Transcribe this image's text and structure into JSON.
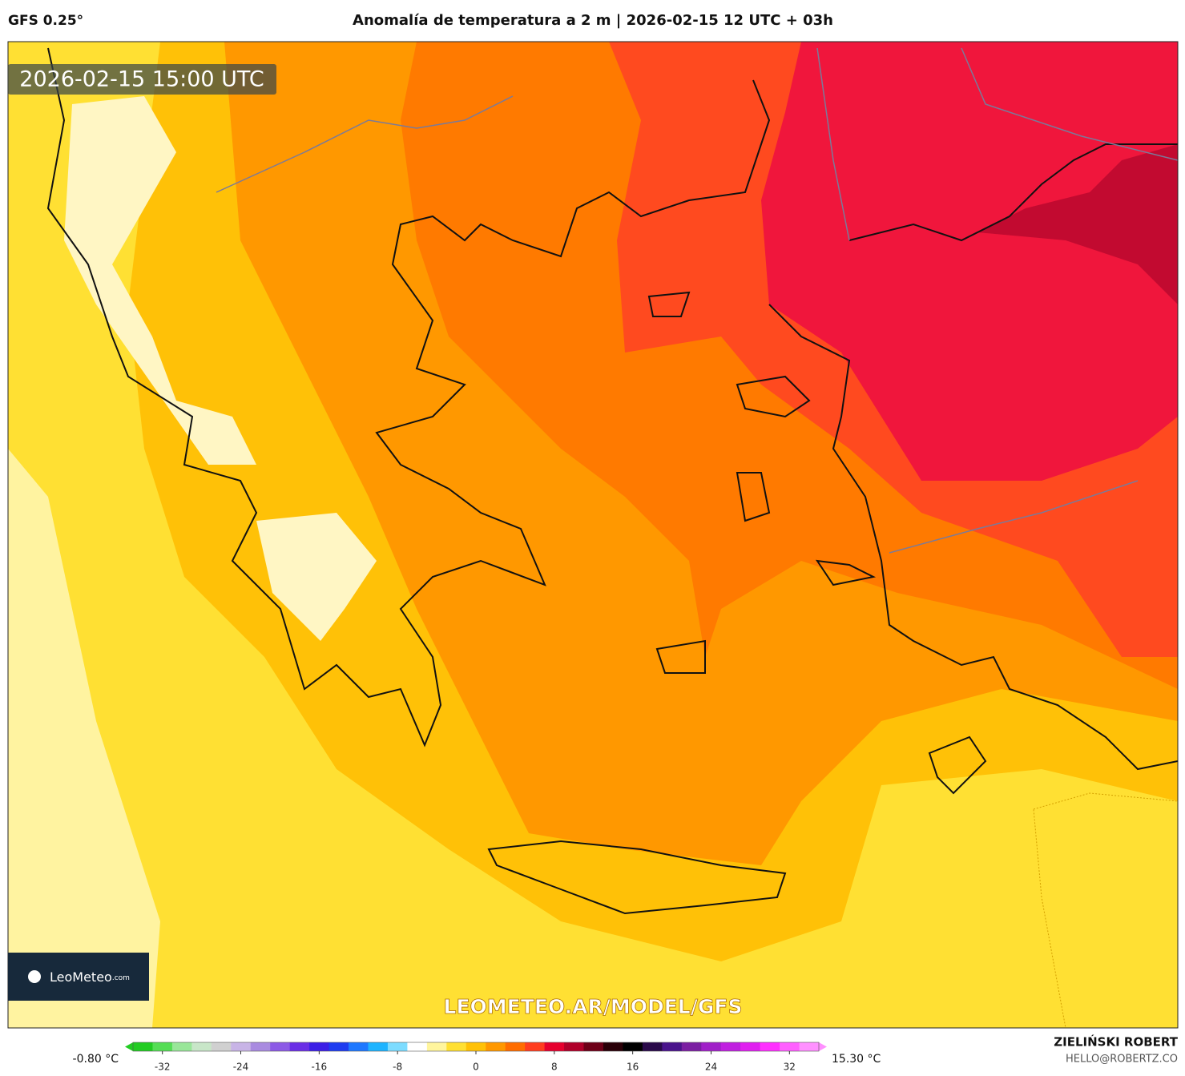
{
  "header": {
    "model": "GFS 0.25°",
    "title": "Anomalía de temperatura a 2 m | 2026-02-15 12 UTC + 03h"
  },
  "map": {
    "valid_time": "2026-02-15 15:00 UTC",
    "watermark": "LEOMETEO.AR/MODEL/GFS",
    "logo": {
      "name": "LeoMeteo",
      "suffix": ".com"
    }
  },
  "colorbar": {
    "min_label": "-0.80 °C",
    "max_label": "15.30 °C",
    "lim": [
      -35,
      35
    ],
    "ticks": [
      -32,
      -24,
      -16,
      -8,
      0,
      8,
      16,
      24,
      32
    ],
    "colors": [
      "#22cc22",
      "#55dd55",
      "#99e699",
      "#c8e6c8",
      "#d0d0d0",
      "#c8b4e6",
      "#a98be0",
      "#8c5ae6",
      "#6a2ee6",
      "#3b1ee6",
      "#1e3cf0",
      "#1e78ff",
      "#1eb4ff",
      "#7ddcff",
      "#ffffff",
      "#fff59d",
      "#ffe033",
      "#ffc107",
      "#ff9800",
      "#ff6d00",
      "#ff3d1f",
      "#e6002e",
      "#b0002a",
      "#6e0018",
      "#2a0008",
      "#000000",
      "#2a0a4a",
      "#4a148c",
      "#7b1fa2",
      "#a020c8",
      "#c020e0",
      "#e020f0",
      "#ff30ff",
      "#ff60ff",
      "#ff90ff"
    ]
  },
  "footer": {
    "author": "ZIELIŃSKI ROBERT",
    "email": "HELLO@ROBERTZ.CO"
  }
}
